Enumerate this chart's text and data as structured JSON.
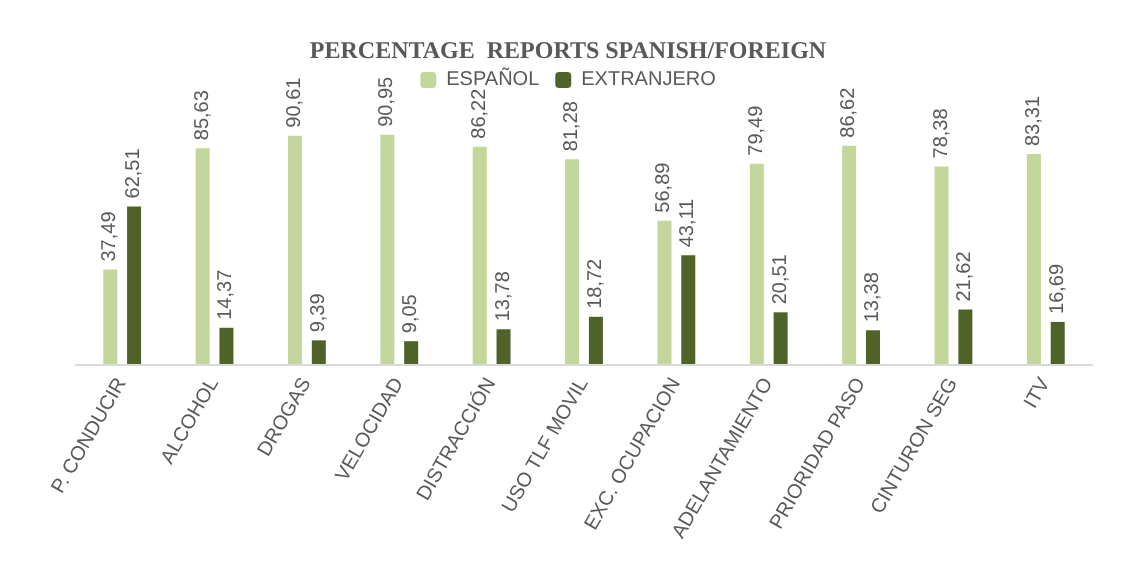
{
  "chart_data": {
    "type": "bar",
    "title": "PERCENTAGE  REPORTS SPANISH/FOREIGN",
    "categories": [
      "P. CONDUCIR",
      "ALCOHOL",
      "DROGAS",
      "VELOCIDAD",
      "DISTRACCIÓN",
      "USO TLF MOVIL",
      "EXC. OCUPACION",
      "ADELANTAMIENTO",
      "PRIORIDAD PASO",
      "CINTURON SEG",
      "ITV"
    ],
    "series": [
      {
        "name": "ESPAÑOL",
        "color": "#c3d69b",
        "values": [
          37.49,
          85.63,
          90.61,
          90.95,
          86.22,
          81.28,
          56.89,
          79.49,
          86.62,
          78.38,
          83.31
        ],
        "value_labels": [
          "37,49",
          "85,63",
          "90,61",
          "90,95",
          "86,22",
          "81,28",
          "56,89",
          "79,49",
          "86,62",
          "78,38",
          "83,31"
        ]
      },
      {
        "name": "EXTRANJERO",
        "color": "#4f6228",
        "values": [
          62.51,
          14.37,
          9.39,
          9.05,
          13.78,
          18.72,
          43.11,
          20.51,
          13.38,
          21.62,
          16.69
        ],
        "value_labels": [
          "62,51",
          "14,37",
          "9,39",
          "9,05",
          "13,78",
          "18,72",
          "43,11",
          "20,51",
          "13,38",
          "21,62",
          "16,69"
        ]
      }
    ],
    "legend": "top",
    "grid": false
  }
}
